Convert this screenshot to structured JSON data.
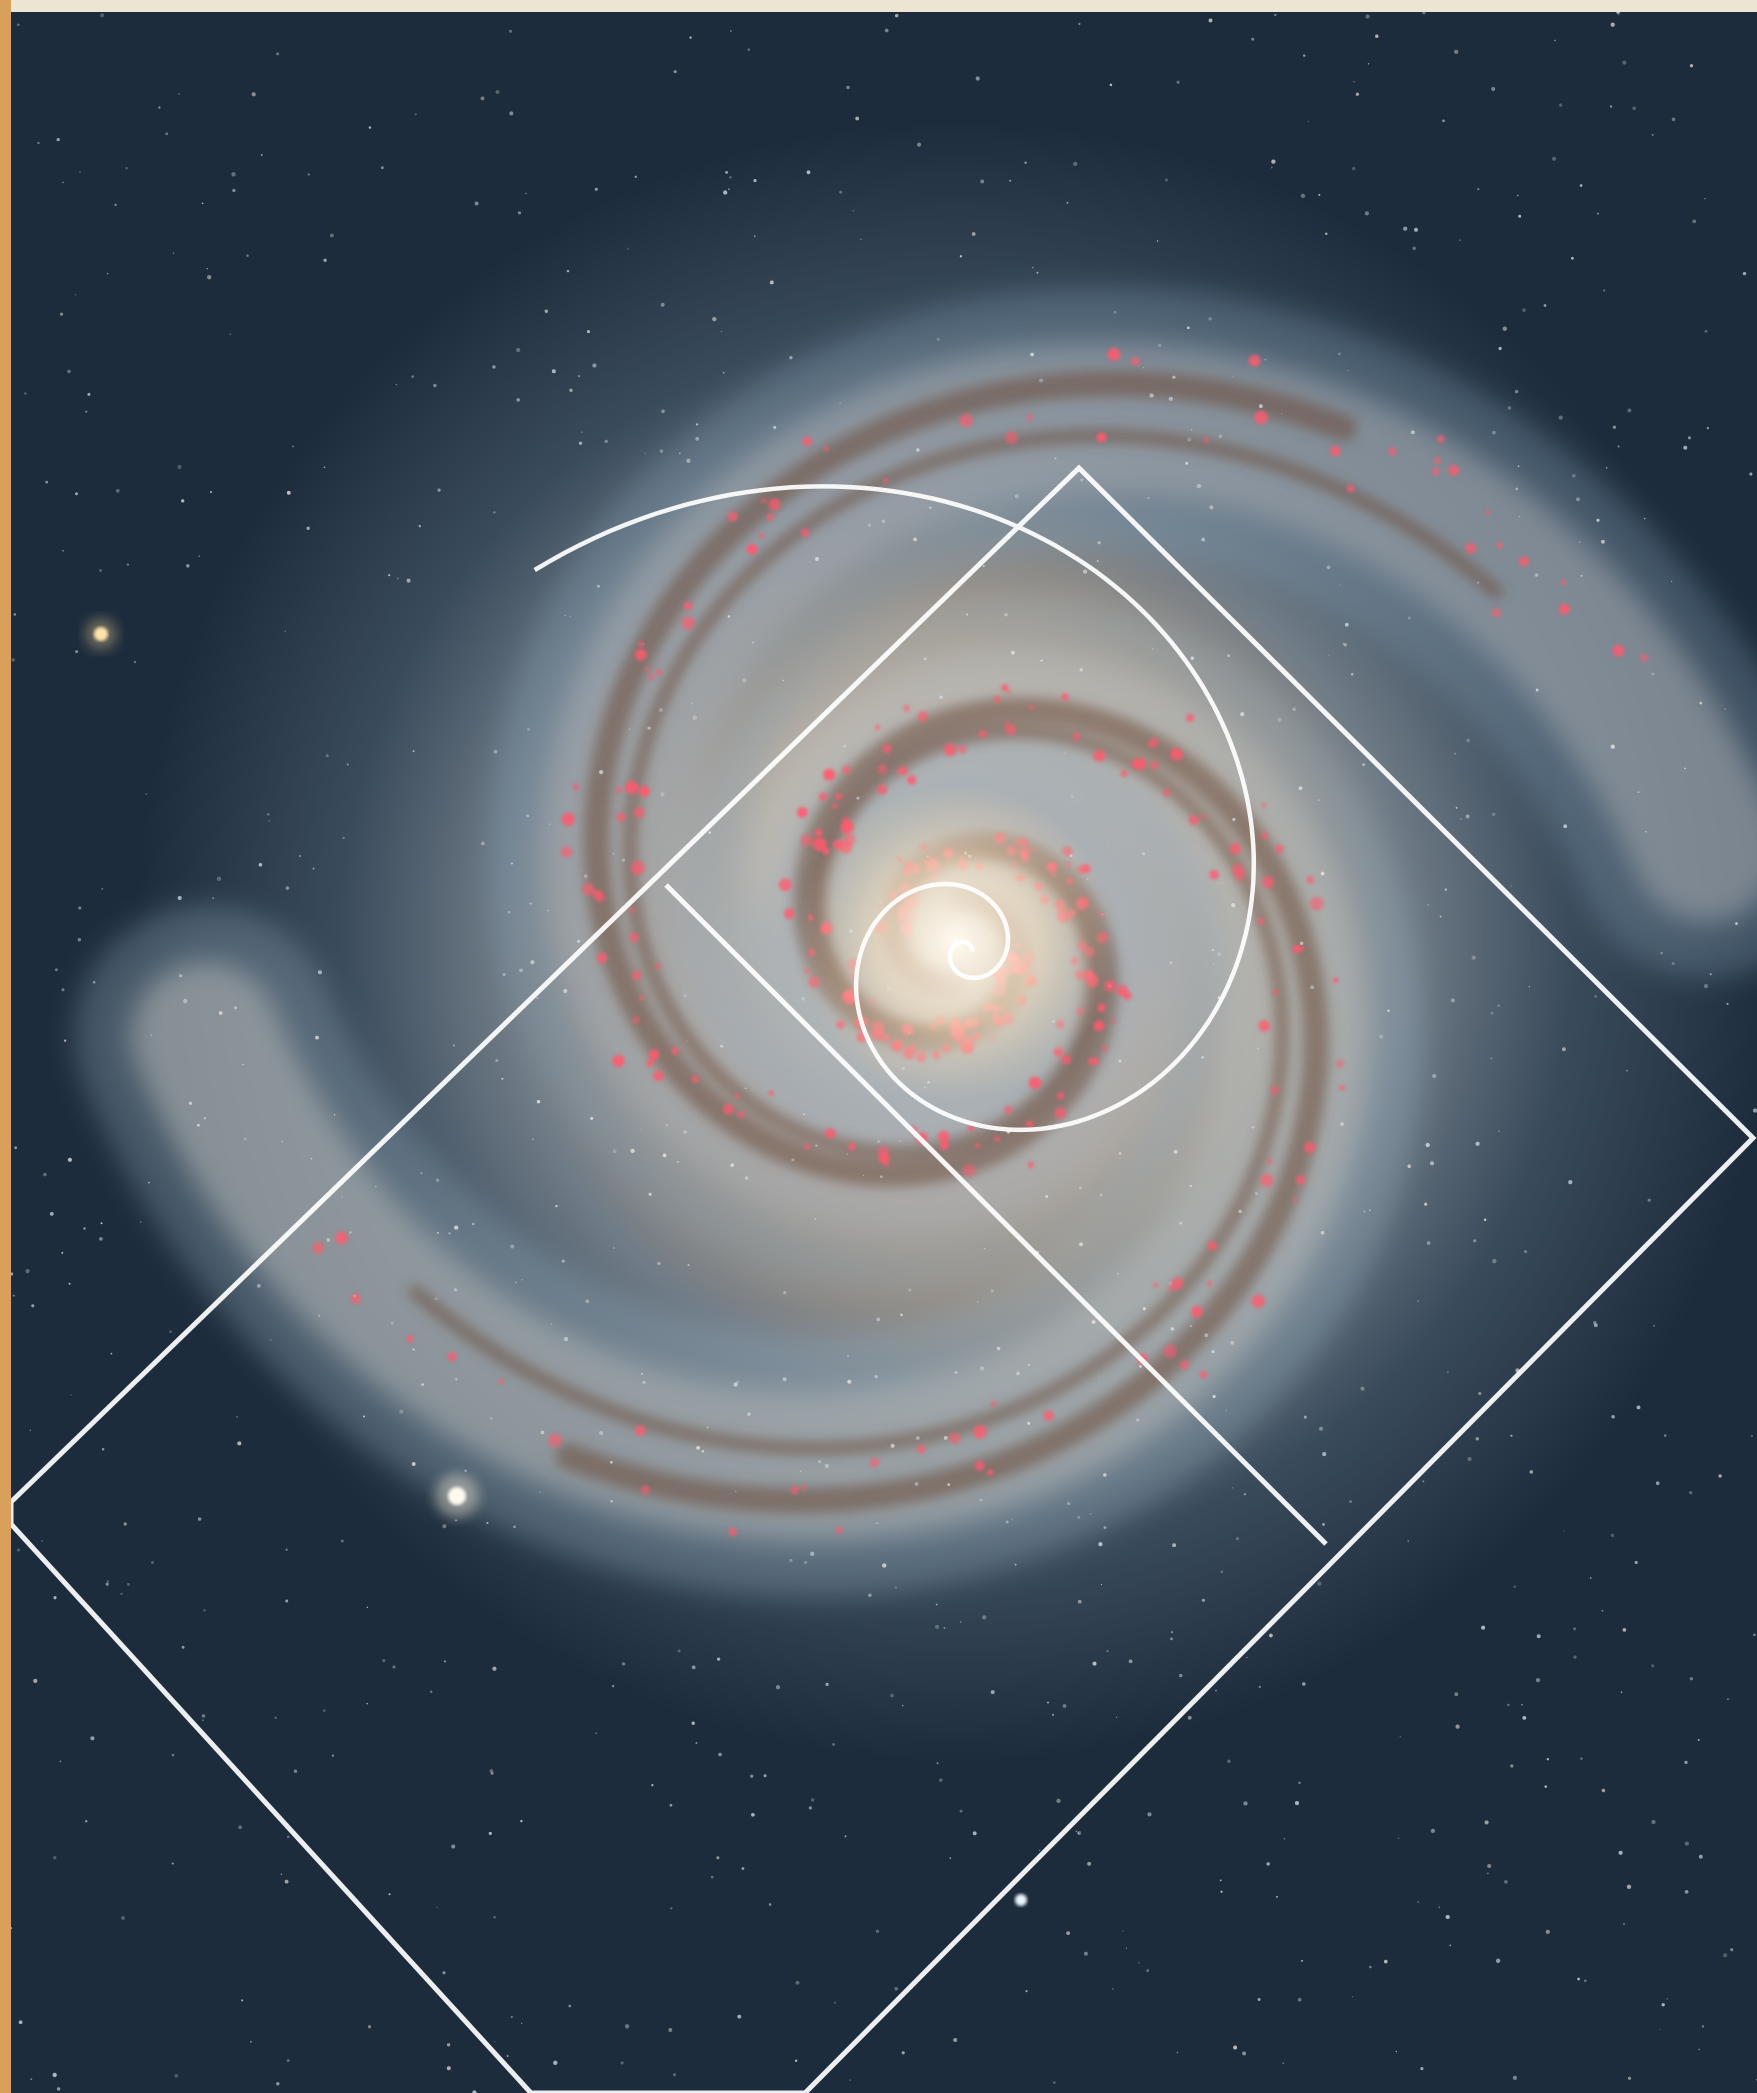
{
  "image": {
    "subject": "spiral-galaxy",
    "overlay": "golden-spiral-with-rotated-golden-rectangles",
    "colors": {
      "background_frame": "#ece5d2",
      "left_edge": "#d8a05a",
      "space": "#223447",
      "space_dark": "#0f1b2a",
      "arm_blue": "#8fa9bd",
      "arm_dust": "#6b4a3c",
      "core": "#fff3dc",
      "core_glow": "#e9cfae",
      "star_forming": "#ff5a6e",
      "overlay_line": "#ffffff"
    }
  }
}
